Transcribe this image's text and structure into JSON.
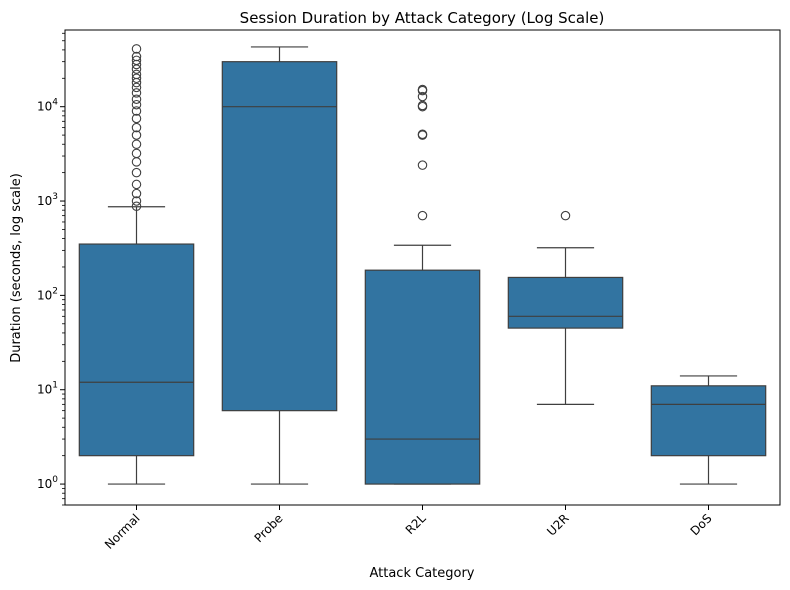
{
  "chart_data": {
    "type": "box",
    "title": "Session Duration by Attack Category (Log Scale)",
    "xlabel": "Attack Category",
    "ylabel": "Duration (seconds, log scale)",
    "y_scale": "log",
    "ylim": [
      0.6,
      65000
    ],
    "yticks": [
      {
        "value": 1,
        "label_base": "10",
        "label_exp": "0"
      },
      {
        "value": 10,
        "label_base": "10",
        "label_exp": "1"
      },
      {
        "value": 100,
        "label_base": "10",
        "label_exp": "2"
      },
      {
        "value": 1000,
        "label_base": "10",
        "label_exp": "3"
      },
      {
        "value": 10000,
        "label_base": "10",
        "label_exp": "4"
      }
    ],
    "categories": [
      "Normal",
      "Probe",
      "R2L",
      "U2R",
      "DoS"
    ],
    "box_color": "#3274a1",
    "line_color": "#3f3f3f",
    "boxes": [
      {
        "category": "Normal",
        "whisker_low": 1,
        "q1": 2,
        "median": 12,
        "q3": 350,
        "whisker_high": 870,
        "outliers": [
          880,
          1000,
          1200,
          1500,
          2000,
          2600,
          3200,
          4000,
          5000,
          6000,
          7500,
          9000,
          10500,
          12000,
          14000,
          16000,
          18000,
          20000,
          22000,
          25000,
          28000,
          31000,
          34000,
          41000
        ]
      },
      {
        "category": "Probe",
        "whisker_low": 1,
        "q1": 6,
        "median": 10000,
        "q3": 30000,
        "whisker_high": 43000,
        "outliers": []
      },
      {
        "category": "R2L",
        "whisker_low": 1,
        "q1": 1,
        "median": 3,
        "q3": 185,
        "whisker_high": 340,
        "outliers": [
          700,
          2400,
          5000,
          5100,
          10000,
          10300,
          12800,
          14800,
          15200
        ]
      },
      {
        "category": "U2R",
        "whisker_low": 7,
        "q1": 45,
        "median": 60,
        "q3": 155,
        "whisker_high": 320,
        "outliers": [
          700
        ]
      },
      {
        "category": "DoS",
        "whisker_low": 1,
        "q1": 2,
        "median": 7,
        "q3": 11,
        "whisker_high": 14,
        "outliers": []
      }
    ],
    "grid": false,
    "legend": "none"
  }
}
